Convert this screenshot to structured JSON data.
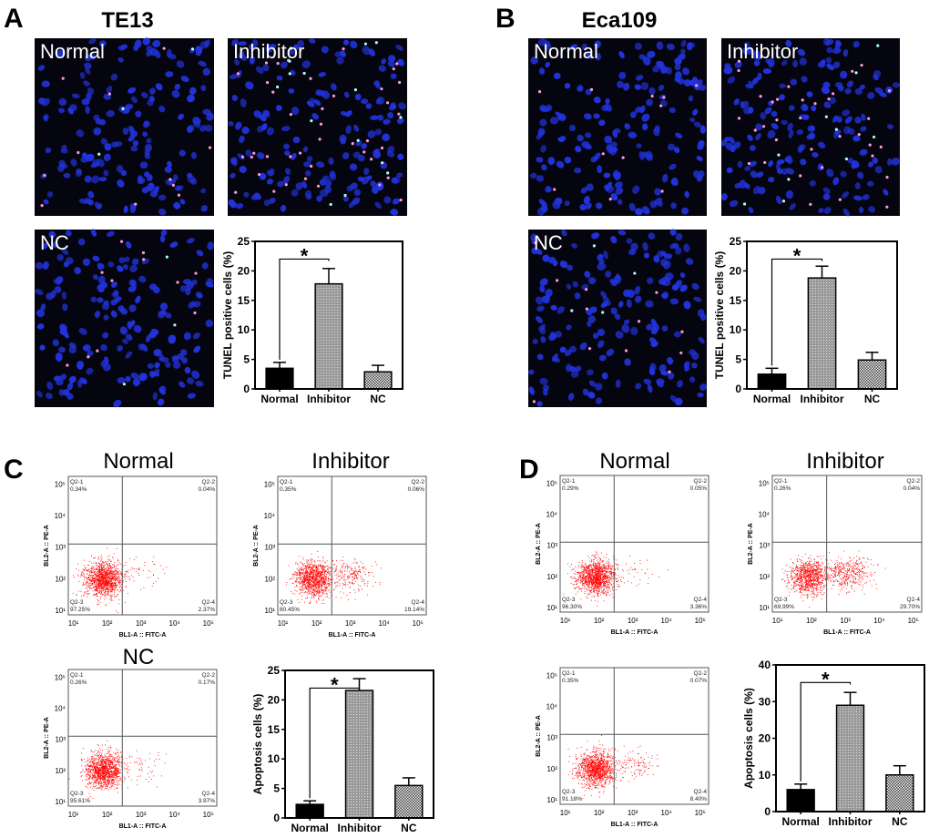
{
  "panels": {
    "A": {
      "letter": "A",
      "title": "TE13",
      "images": [
        "Normal",
        "Inhibitor",
        "NC"
      ]
    },
    "B": {
      "letter": "B",
      "title": "Eca109",
      "images": [
        "Normal",
        "Inhibitor",
        "NC"
      ]
    },
    "C": {
      "letter": "C",
      "flow_titles": [
        "Normal",
        "Inhibitor",
        "NC"
      ]
    },
    "D": {
      "letter": "D",
      "flow_titles": [
        "Normal",
        "Inhibitor",
        ""
      ]
    }
  },
  "microscopy_colors": {
    "background": "#05050f",
    "nucleus": "#2233dd",
    "tunel_positive": "#ff99dd"
  },
  "flow": {
    "x_axis_label": "BL1-A :: FITC-A",
    "y_axis_label": "BL2-A :: PE-A",
    "ticks": [
      "10¹",
      "10²",
      "10³",
      "10⁴",
      "10⁵"
    ],
    "dot_color": "#ff0000",
    "quadrant_names": [
      "Q2-1",
      "Q2-2",
      "Q2-3",
      "Q2-4"
    ],
    "plots": [
      {
        "panel": "C",
        "title": "Normal",
        "q1": "0.34%",
        "q2": "0.04%",
        "q3": "97.25%",
        "q4": "2.37%"
      },
      {
        "panel": "C",
        "title": "Inhibitor",
        "q1": "0.35%",
        "q2": "0.06%",
        "q3": "80.45%",
        "q4": "19.14%"
      },
      {
        "panel": "C",
        "title": "NC",
        "q1": "0.26%",
        "q2": "0.17%",
        "q3": "95.61%",
        "q4": "3.97%"
      },
      {
        "panel": "D",
        "title": "Normal",
        "q1": "0.29%",
        "q2": "0.05%",
        "q3": "96.30%",
        "q4": "3.36%"
      },
      {
        "panel": "D",
        "title": "Inhibitor",
        "q1": "0.26%",
        "q2": "0.04%",
        "q3": "69.99%",
        "q4": "29.70%"
      },
      {
        "panel": "D",
        "title": "",
        "q1": "0.35%",
        "q2": "0.07%",
        "q3": "91.18%",
        "q4": "8.40%"
      }
    ]
  },
  "chart_data": [
    {
      "panel": "A",
      "type": "bar",
      "categories": [
        "Normal",
        "Inhibitor",
        "NC"
      ],
      "values": [
        3.5,
        17.8,
        2.9
      ],
      "errors": [
        1.0,
        2.6,
        1.1
      ],
      "ylabel": "TUNEL positive cells (%)",
      "ylim": [
        0,
        25
      ],
      "yticks": [
        "0",
        "5",
        "10",
        "15",
        "20",
        "25"
      ],
      "significance": {
        "between": [
          "Normal",
          "Inhibitor"
        ],
        "mark": "*"
      },
      "colors": {
        "Normal": "#000000",
        "Inhibitor": "#a0a0a0",
        "NC": "#c8c8c8"
      }
    },
    {
      "panel": "B",
      "type": "bar",
      "categories": [
        "Normal",
        "Inhibitor",
        "NC"
      ],
      "values": [
        2.5,
        18.8,
        4.9
      ],
      "errors": [
        1.0,
        2.0,
        1.3
      ],
      "ylabel": "TUNEL positive cells (%)",
      "ylim": [
        0,
        25
      ],
      "yticks": [
        "0",
        "5",
        "10",
        "15",
        "20",
        "25"
      ],
      "significance": {
        "between": [
          "Normal",
          "Inhibitor"
        ],
        "mark": "*"
      },
      "colors": {
        "Normal": "#000000",
        "Inhibitor": "#a0a0a0",
        "NC": "#c8c8c8"
      }
    },
    {
      "panel": "C",
      "type": "bar",
      "categories": [
        "Normal",
        "Inhibitor",
        "NC"
      ],
      "values": [
        2.3,
        21.6,
        5.5
      ],
      "errors": [
        0.6,
        2.0,
        1.3
      ],
      "ylabel": "Apoptosis cells (%)",
      "ylim": [
        0,
        25
      ],
      "yticks": [
        "0",
        "5",
        "10",
        "15",
        "20",
        "25"
      ],
      "significance": {
        "between": [
          "Normal",
          "Inhibitor"
        ],
        "mark": "*"
      },
      "colors": {
        "Normal": "#000000",
        "Inhibitor": "#a0a0a0",
        "NC": "#c8c8c8"
      }
    },
    {
      "panel": "D",
      "type": "bar",
      "categories": [
        "Normal",
        "Inhibitor",
        "NC"
      ],
      "values": [
        6.0,
        29.0,
        10.0
      ],
      "errors": [
        1.5,
        3.5,
        2.5
      ],
      "ylabel": "Apoptosis cells (%)",
      "ylim": [
        0,
        40
      ],
      "yticks": [
        "0",
        "10",
        "20",
        "30",
        "40"
      ],
      "significance": {
        "between": [
          "Normal",
          "Inhibitor"
        ],
        "mark": "*"
      },
      "colors": {
        "Normal": "#000000",
        "Inhibitor": "#a0a0a0",
        "NC": "#c8c8c8"
      }
    }
  ]
}
